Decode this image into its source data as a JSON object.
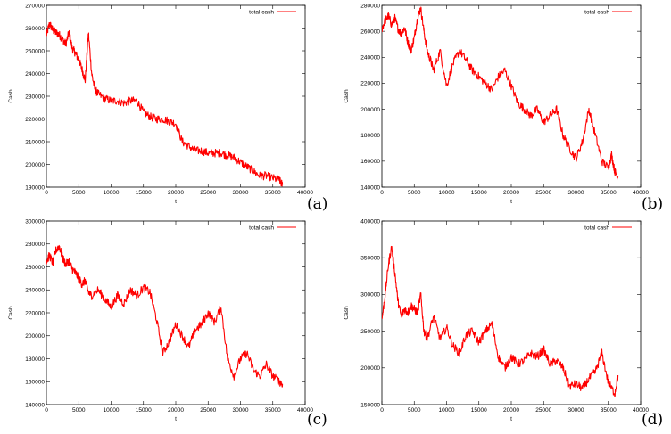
{
  "chart_data": [
    {
      "type": "line",
      "panel_label": "(a)",
      "xlabel": "t",
      "ylabel": "Cash",
      "xlim": [
        0,
        40000
      ],
      "ylim": [
        190000,
        270000
      ],
      "xticks": [
        "0",
        "5000",
        "10000",
        "15000",
        "20000",
        "25000",
        "30000",
        "35000",
        "40000"
      ],
      "yticks": [
        "190000",
        "200000",
        "210000",
        "220000",
        "230000",
        "240000",
        "250000",
        "260000",
        "270000"
      ],
      "legend_position": "top-right",
      "series": [
        {
          "name": "total cash",
          "color": "#ff0000",
          "x": [
            0,
            500,
            1000,
            1500,
            2000,
            2500,
            3000,
            3500,
            4000,
            4500,
            5000,
            5500,
            6000,
            6500,
            7000,
            7500,
            8000,
            9000,
            10000,
            11000,
            12000,
            13000,
            14000,
            15000,
            16000,
            17000,
            18000,
            19000,
            20000,
            21000,
            22000,
            23000,
            24000,
            25000,
            26000,
            27000,
            28000,
            29000,
            30000,
            31000,
            32000,
            33000,
            34000,
            35000,
            36000,
            36500
          ],
          "y": [
            257000,
            262000,
            259000,
            258000,
            257000,
            255000,
            253000,
            258000,
            251000,
            249000,
            246000,
            242000,
            237000,
            258000,
            240000,
            233000,
            231000,
            229000,
            228000,
            228000,
            227000,
            228000,
            228000,
            223000,
            221000,
            220000,
            220000,
            219000,
            218000,
            210000,
            208000,
            206000,
            206000,
            205000,
            205000,
            205000,
            204000,
            203000,
            201000,
            199000,
            197000,
            195000,
            195000,
            194000,
            193000,
            191000
          ]
        }
      ]
    },
    {
      "type": "line",
      "panel_label": "(b)",
      "xlabel": "t",
      "ylabel": "Cash",
      "xlim": [
        0,
        40000
      ],
      "ylim": [
        140000,
        280000
      ],
      "xticks": [
        "0",
        "5000",
        "10000",
        "15000",
        "20000",
        "25000",
        "30000",
        "35000",
        "40000"
      ],
      "yticks": [
        "140000",
        "160000",
        "180000",
        "200000",
        "220000",
        "240000",
        "260000",
        "280000"
      ],
      "legend_position": "top-right",
      "series": [
        {
          "name": "total cash",
          "color": "#ff0000",
          "x": [
            0,
            500,
            1000,
            1500,
            2000,
            2500,
            3000,
            3500,
            4000,
            4500,
            5000,
            5500,
            6000,
            6500,
            7000,
            7500,
            8000,
            9000,
            10000,
            11000,
            12000,
            13000,
            14000,
            15000,
            16000,
            17000,
            18000,
            19000,
            20000,
            21000,
            22000,
            23000,
            24000,
            25000,
            26000,
            27000,
            28000,
            29000,
            30000,
            31000,
            32000,
            33000,
            34000,
            35000,
            35500,
            36000,
            36500
          ],
          "y": [
            262000,
            268000,
            272000,
            265000,
            270000,
            262000,
            258000,
            263000,
            252000,
            245000,
            255000,
            270000,
            278000,
            260000,
            245000,
            238000,
            230000,
            245000,
            218000,
            235000,
            245000,
            238000,
            230000,
            225000,
            220000,
            215000,
            225000,
            230000,
            218000,
            205000,
            200000,
            195000,
            200000,
            190000,
            195000,
            200000,
            180000,
            170000,
            162000,
            175000,
            200000,
            180000,
            160000,
            155000,
            165000,
            152000,
            148000
          ]
        }
      ]
    },
    {
      "type": "line",
      "panel_label": "(c)",
      "xlabel": "t",
      "ylabel": "Cash",
      "xlim": [
        0,
        40000
      ],
      "ylim": [
        140000,
        300000
      ],
      "xticks": [
        "0",
        "5000",
        "10000",
        "15000",
        "20000",
        "25000",
        "30000",
        "35000",
        "40000"
      ],
      "yticks": [
        "140000",
        "160000",
        "180000",
        "200000",
        "220000",
        "240000",
        "260000",
        "280000",
        "300000"
      ],
      "legend_position": "top-right",
      "series": [
        {
          "name": "total cash",
          "color": "#ff0000",
          "x": [
            0,
            500,
            1000,
            1500,
            2000,
            2500,
            3000,
            3500,
            4000,
            4500,
            5000,
            5500,
            6000,
            6500,
            7000,
            8000,
            9000,
            10000,
            11000,
            12000,
            13000,
            14000,
            15000,
            16000,
            17000,
            18000,
            19000,
            20000,
            21000,
            22000,
            23000,
            24000,
            25000,
            26000,
            27000,
            28000,
            29000,
            30000,
            31000,
            32000,
            33000,
            34000,
            35000,
            36000,
            36500
          ],
          "y": [
            265000,
            270000,
            263000,
            275000,
            278000,
            268000,
            262000,
            265000,
            258000,
            255000,
            250000,
            245000,
            248000,
            238000,
            235000,
            240000,
            232000,
            225000,
            235000,
            228000,
            240000,
            235000,
            242000,
            238000,
            215000,
            185000,
            195000,
            210000,
            200000,
            190000,
            205000,
            210000,
            220000,
            212000,
            225000,
            180000,
            165000,
            180000,
            185000,
            170000,
            165000,
            175000,
            165000,
            160000,
            158000
          ]
        }
      ]
    },
    {
      "type": "line",
      "panel_label": "(d)",
      "xlabel": "t",
      "ylabel": "Cash",
      "xlim": [
        0,
        40000
      ],
      "ylim": [
        150000,
        400000
      ],
      "xticks": [
        "0",
        "5000",
        "10000",
        "15000",
        "20000",
        "25000",
        "30000",
        "35000",
        "40000"
      ],
      "yticks": [
        "150000",
        "200000",
        "250000",
        "300000",
        "350000",
        "400000"
      ],
      "legend_position": "top-right",
      "series": [
        {
          "name": "total cash",
          "color": "#ff0000",
          "x": [
            0,
            500,
            1000,
            1500,
            2000,
            2500,
            3000,
            3500,
            4000,
            4500,
            5000,
            5500,
            6000,
            6500,
            7000,
            8000,
            9000,
            10000,
            11000,
            12000,
            13000,
            14000,
            15000,
            16000,
            17000,
            18000,
            19000,
            20000,
            21000,
            22000,
            23000,
            24000,
            25000,
            26000,
            27000,
            28000,
            29000,
            30000,
            31000,
            32000,
            33000,
            34000,
            35000,
            36000,
            36500
          ],
          "y": [
            265000,
            300000,
            340000,
            365000,
            330000,
            290000,
            270000,
            280000,
            275000,
            285000,
            280000,
            275000,
            300000,
            250000,
            240000,
            270000,
            240000,
            255000,
            230000,
            220000,
            245000,
            250000,
            235000,
            250000,
            260000,
            215000,
            200000,
            215000,
            205000,
            210000,
            220000,
            215000,
            225000,
            205000,
            210000,
            200000,
            175000,
            178000,
            172000,
            185000,
            195000,
            220000,
            180000,
            165000,
            190000
          ]
        }
      ]
    }
  ]
}
